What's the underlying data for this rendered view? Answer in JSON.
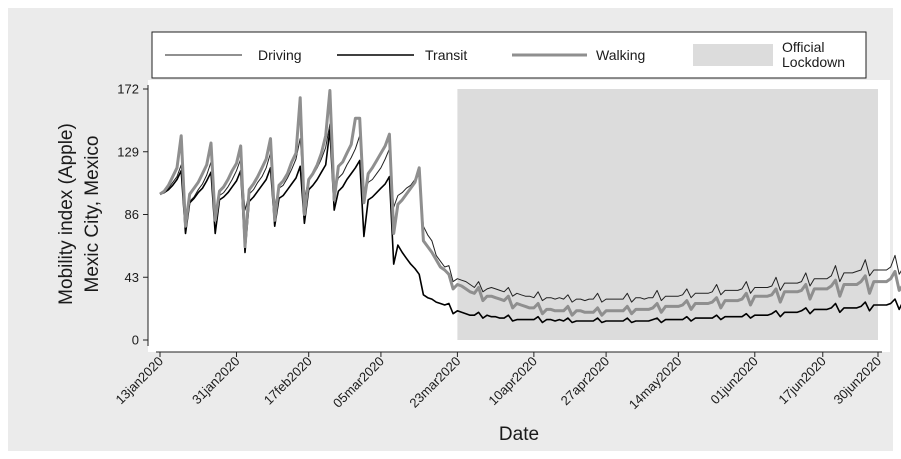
{
  "chart_data": {
    "type": "line",
    "title": "",
    "xlabel": "Date",
    "ylabel": [
      "Mobility index (Apple)",
      "Mexic City, Mexico"
    ],
    "ylim": [
      0,
      172
    ],
    "yticks": [
      0,
      43,
      86,
      129,
      172
    ],
    "xlim": [
      "2020-01-13",
      "2020-06-30"
    ],
    "xticks": [
      "13jan2020",
      "31jan2020",
      "17feb2020",
      "05mar2020",
      "23mar2020",
      "10apr2020",
      "27apr2020",
      "14may2020",
      "01jun2020",
      "17jun2020",
      "30jun2020"
    ],
    "x_start": "2020-01-13",
    "grid": false,
    "legend": {
      "position": "top",
      "entries": [
        "Driving",
        "Transit",
        "Walking",
        "Official Lockdown"
      ]
    },
    "shaded_region": {
      "label": "Official Lockdown",
      "start": "2020-03-23",
      "end": "2020-06-30",
      "ymax": 172,
      "color": "#dcdcdc"
    },
    "series": [
      {
        "name": "Driving",
        "color": "#222222",
        "values": [
          100,
          101,
          104,
          108,
          112,
          120,
          82,
          95,
          98,
          103,
          107,
          113,
          122,
          88,
          99,
          101,
          105,
          110,
          116,
          124,
          89,
          100,
          103,
          108,
          112,
          118,
          128,
          92,
          104,
          106,
          111,
          117,
          124,
          138,
          97,
          110,
          113,
          118,
          124,
          132,
          148,
          102,
          111,
          114,
          120,
          125,
          131,
          140,
          100,
          108,
          110,
          114,
          118,
          124,
          131,
          91,
          99,
          101,
          104,
          106,
          110,
          116,
          78,
          72,
          68,
          58,
          54,
          50,
          51,
          40,
          42,
          41,
          40,
          38,
          36,
          40,
          33,
          35,
          36,
          35,
          34,
          33,
          36,
          30,
          32,
          31,
          30,
          30,
          29,
          33,
          27,
          29,
          29,
          28,
          29,
          28,
          31,
          26,
          28,
          28,
          27,
          28,
          28,
          32,
          26,
          28,
          28,
          28,
          28,
          28,
          32,
          26,
          29,
          29,
          28,
          29,
          29,
          34,
          27,
          30,
          30,
          30,
          30,
          31,
          35,
          29,
          32,
          32,
          32,
          32,
          33,
          38,
          31,
          34,
          34,
          34,
          34,
          35,
          40,
          32,
          36,
          36,
          36,
          36,
          37,
          43,
          34,
          39,
          39,
          39,
          39,
          40,
          46,
          37,
          42,
          42,
          42,
          42,
          44,
          51,
          40,
          46,
          46,
          46,
          47,
          48,
          55,
          44,
          48,
          48,
          48,
          48,
          50,
          58,
          45,
          50
        ]
      },
      {
        "name": "Transit",
        "color": "#000000",
        "values": [
          100,
          101,
          103,
          106,
          110,
          116,
          73,
          94,
          97,
          101,
          104,
          109,
          115,
          73,
          96,
          98,
          101,
          105,
          109,
          116,
          60,
          95,
          98,
          102,
          106,
          110,
          118,
          78,
          97,
          99,
          103,
          107,
          111,
          119,
          80,
          103,
          106,
          110,
          115,
          120,
          144,
          89,
          102,
          105,
          110,
          114,
          118,
          123,
          71,
          96,
          98,
          101,
          104,
          107,
          112,
          52,
          65,
          60,
          56,
          52,
          49,
          45,
          31,
          29,
          28,
          26,
          25,
          24,
          25,
          18,
          20,
          19,
          18,
          17,
          17,
          19,
          15,
          17,
          16,
          16,
          15,
          15,
          17,
          13,
          14,
          14,
          14,
          14,
          14,
          16,
          12,
          14,
          14,
          13,
          14,
          13,
          15,
          12,
          13,
          13,
          13,
          13,
          13,
          15,
          12,
          13,
          13,
          13,
          13,
          13,
          15,
          12,
          13,
          13,
          13,
          13,
          14,
          15,
          12,
          14,
          14,
          14,
          14,
          14,
          16,
          13,
          15,
          15,
          15,
          15,
          15,
          17,
          14,
          16,
          16,
          16,
          16,
          16,
          18,
          15,
          17,
          17,
          17,
          17,
          18,
          20,
          16,
          19,
          19,
          19,
          19,
          20,
          22,
          18,
          21,
          21,
          21,
          21,
          22,
          25,
          19,
          22,
          22,
          22,
          22,
          23,
          26,
          20,
          24,
          24,
          24,
          24,
          25,
          28,
          21,
          27
        ]
      },
      {
        "name": "Walking",
        "color": "#8f8f8f",
        "values": [
          100,
          102,
          106,
          112,
          118,
          140,
          78,
          100,
          104,
          108,
          114,
          120,
          135,
          82,
          102,
          105,
          110,
          116,
          121,
          133,
          64,
          103,
          107,
          112,
          118,
          124,
          138,
          82,
          106,
          109,
          114,
          122,
          128,
          166,
          86,
          110,
          114,
          120,
          128,
          140,
          171,
          96,
          119,
          122,
          128,
          134,
          152,
          152,
          94,
          114,
          118,
          123,
          128,
          133,
          141,
          73,
          93,
          96,
          100,
          104,
          108,
          118,
          68,
          64,
          60,
          55,
          50,
          48,
          45,
          35,
          38,
          37,
          35,
          33,
          32,
          36,
          27,
          30,
          30,
          29,
          28,
          27,
          30,
          22,
          25,
          24,
          23,
          22,
          22,
          25,
          18,
          21,
          21,
          20,
          20,
          20,
          23,
          17,
          20,
          20,
          19,
          19,
          19,
          22,
          17,
          20,
          20,
          20,
          20,
          20,
          23,
          18,
          21,
          21,
          21,
          21,
          22,
          25,
          19,
          23,
          23,
          23,
          23,
          24,
          27,
          21,
          25,
          25,
          25,
          25,
          26,
          29,
          22,
          27,
          27,
          27,
          27,
          28,
          32,
          24,
          30,
          30,
          30,
          30,
          31,
          35,
          26,
          33,
          33,
          33,
          33,
          34,
          38,
          28,
          35,
          35,
          35,
          35,
          37,
          41,
          30,
          38,
          38,
          38,
          38,
          40,
          44,
          32,
          40,
          40,
          40,
          40,
          42,
          47,
          34,
          38
        ]
      }
    ]
  }
}
